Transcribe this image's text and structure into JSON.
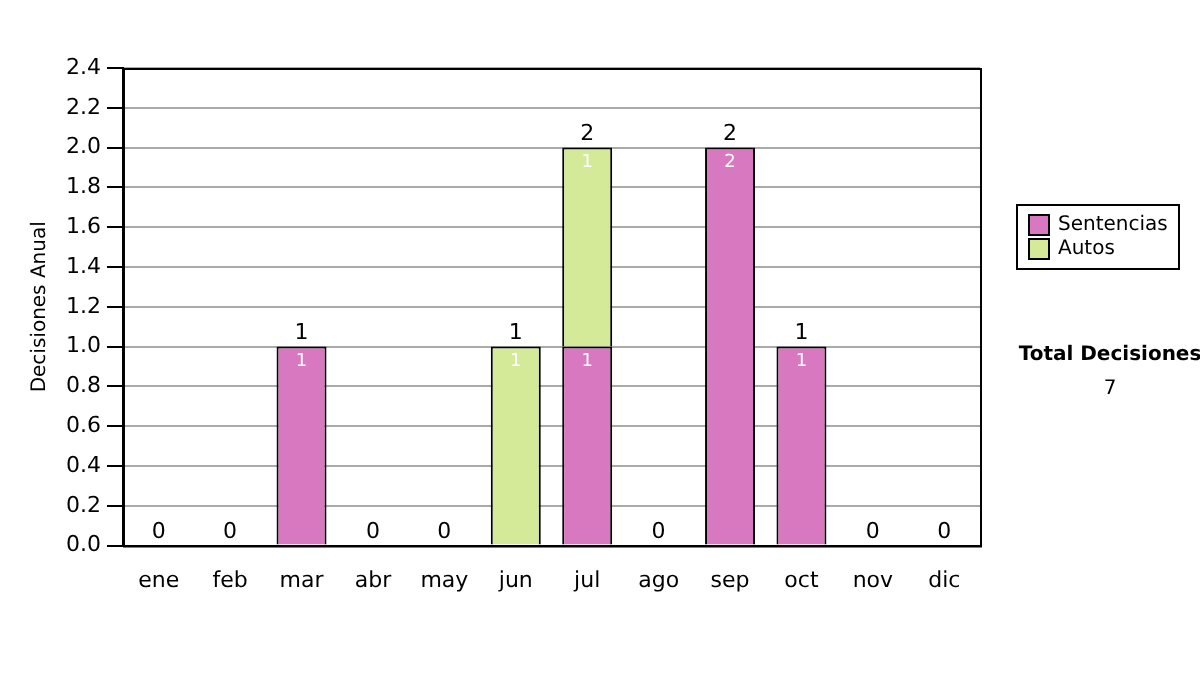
{
  "chart_data": {
    "type": "bar",
    "stacked": true,
    "ylabel": "Decisiones Anual",
    "categories": [
      "ene",
      "feb",
      "mar",
      "abr",
      "may",
      "jun",
      "jul",
      "ago",
      "sep",
      "oct",
      "nov",
      "dic"
    ],
    "series": [
      {
        "name": "Sentencias",
        "color": "#d878c0",
        "values": [
          0,
          0,
          1,
          0,
          0,
          0,
          1,
          0,
          2,
          1,
          0,
          0
        ],
        "value_labels": [
          null,
          null,
          "1",
          null,
          null,
          null,
          "1",
          null,
          "2",
          "1",
          null,
          null
        ]
      },
      {
        "name": "Autos",
        "color": "#d4ea98",
        "values": [
          0,
          0,
          0,
          0,
          0,
          1,
          1,
          0,
          0,
          0,
          0,
          0
        ],
        "value_labels": [
          null,
          null,
          null,
          null,
          null,
          "1",
          "1",
          null,
          null,
          null,
          null,
          null
        ]
      }
    ],
    "totals": [
      "0",
      "0",
      "1",
      "0",
      "0",
      "1",
      "2",
      "0",
      "2",
      "1",
      "0",
      "0"
    ],
    "ylim": [
      0,
      2.4
    ],
    "yticks": [
      {
        "value": 0,
        "label": "0.0"
      },
      {
        "value": 0.2,
        "label": "0.2"
      },
      {
        "value": 0.4,
        "label": "0.4"
      },
      {
        "value": 0.6,
        "label": "0.6"
      },
      {
        "value": 0.8,
        "label": "0.8"
      },
      {
        "value": 1,
        "label": "1.0"
      },
      {
        "value": 1.2,
        "label": "1.2"
      },
      {
        "value": 1.4,
        "label": "1.4"
      },
      {
        "value": 1.6,
        "label": "1.6"
      },
      {
        "value": 1.8,
        "label": "1.8"
      },
      {
        "value": 2,
        "label": "2.0"
      },
      {
        "value": 2.2,
        "label": "2.2"
      },
      {
        "value": 2.4,
        "label": "2.4"
      }
    ],
    "grid": "y",
    "legend": "right",
    "annotations": [
      "Total Decisiones",
      "7"
    ]
  }
}
